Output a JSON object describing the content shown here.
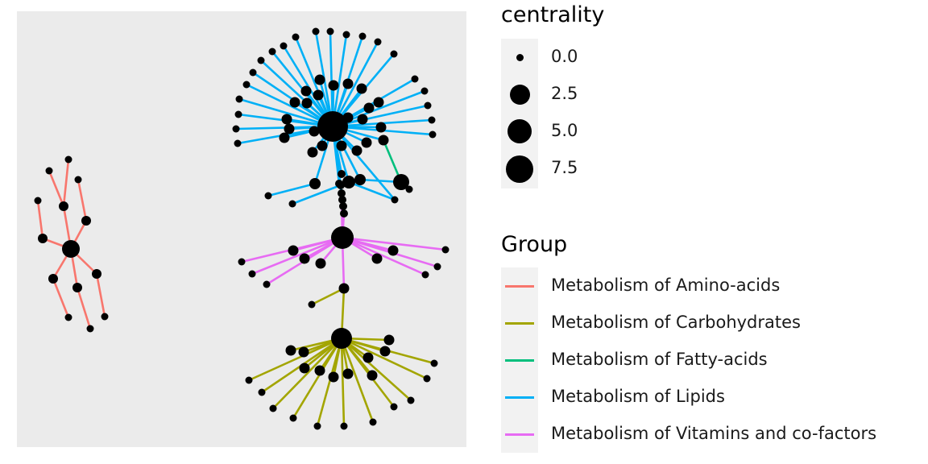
{
  "legend": {
    "centrality": {
      "title": "centrality",
      "items": [
        {
          "label": "0.0",
          "value": 0.0
        },
        {
          "label": "2.5",
          "value": 2.5
        },
        {
          "label": "5.0",
          "value": 5.0
        },
        {
          "label": "7.5",
          "value": 7.5
        }
      ]
    },
    "group": {
      "title": "Group",
      "items": [
        {
          "label": "Metabolism of Amino-acids",
          "color": "#F8766D"
        },
        {
          "label": "Metabolism of Carbohydrates",
          "color": "#A3A500"
        },
        {
          "label": "Metabolism of Fatty-acids",
          "color": "#00BF7D"
        },
        {
          "label": "Metabolism of Lipids",
          "color": "#00B0F6"
        },
        {
          "label": "Metabolism of Vitamins and co-factors",
          "color": "#E76BF3"
        }
      ]
    }
  },
  "colors": {
    "panel_background": "#EBEBEB",
    "node": "#000000"
  }
}
